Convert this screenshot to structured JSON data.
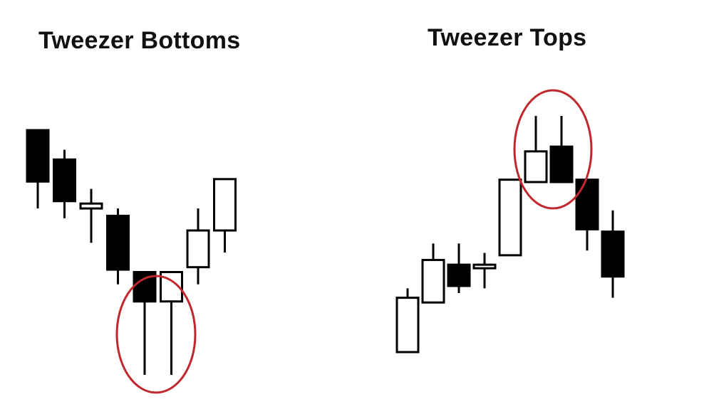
{
  "chart_data": [
    {
      "type": "candlestick",
      "title": "Tweezer Bottoms",
      "xlabel": "",
      "ylabel": "",
      "axes": "none",
      "grid": false,
      "legend": "none",
      "ylim": [
        0,
        100
      ],
      "candles": [
        {
          "open": 100,
          "high": 100,
          "low": 68,
          "close": 79,
          "color": "black"
        },
        {
          "open": 88,
          "high": 92,
          "low": 64,
          "close": 71,
          "color": "black"
        },
        {
          "open": 70,
          "high": 76,
          "low": 54,
          "close": 68,
          "color": "white"
        },
        {
          "open": 65,
          "high": 68,
          "low": 37,
          "close": 43,
          "color": "black"
        },
        {
          "open": 42,
          "high": 42,
          "low": 0,
          "close": 30,
          "color": "black"
        },
        {
          "open": 30,
          "high": 42,
          "low": 0,
          "close": 42,
          "color": "white"
        },
        {
          "open": 44,
          "high": 68,
          "low": 37,
          "close": 59,
          "color": "white"
        },
        {
          "open": 59,
          "high": 80,
          "low": 50,
          "close": 80,
          "color": "white"
        }
      ],
      "highlight": {
        "candles": [
          4,
          5
        ],
        "shape": "ellipse",
        "color": "#c0282e",
        "describes": "equal lows"
      }
    },
    {
      "type": "candlestick",
      "title": "Tweezer Tops",
      "xlabel": "",
      "ylabel": "",
      "axes": "none",
      "grid": false,
      "legend": "none",
      "ylim": [
        0,
        100
      ],
      "candles": [
        {
          "open": 0,
          "high": 27,
          "low": 0,
          "close": 23,
          "color": "white"
        },
        {
          "open": 21,
          "high": 46,
          "low": 21,
          "close": 39,
          "color": "white"
        },
        {
          "open": 37,
          "high": 46,
          "low": 25,
          "close": 28,
          "color": "black"
        },
        {
          "open": 36,
          "high": 42,
          "low": 27,
          "close": 37,
          "color": "white"
        },
        {
          "open": 41,
          "high": 73,
          "low": 41,
          "close": 73,
          "color": "white"
        },
        {
          "open": 72,
          "high": 100,
          "low": 72,
          "close": 85,
          "color": "white"
        },
        {
          "open": 87,
          "high": 100,
          "low": 72,
          "close": 72,
          "color": "black"
        },
        {
          "open": 73,
          "high": 73,
          "low": 43,
          "close": 52,
          "color": "black"
        },
        {
          "open": 51,
          "high": 60,
          "low": 23,
          "close": 32,
          "color": "black"
        }
      ],
      "highlight": {
        "candles": [
          5,
          6
        ],
        "shape": "ellipse",
        "color": "#c0282e",
        "describes": "equal highs"
      }
    }
  ],
  "colors": {
    "candle_up_fill": "#ffffff",
    "candle_down_fill": "#000000",
    "candle_stroke": "#000000",
    "highlight_ellipse": "#c0282e",
    "background": "#ffffff"
  }
}
